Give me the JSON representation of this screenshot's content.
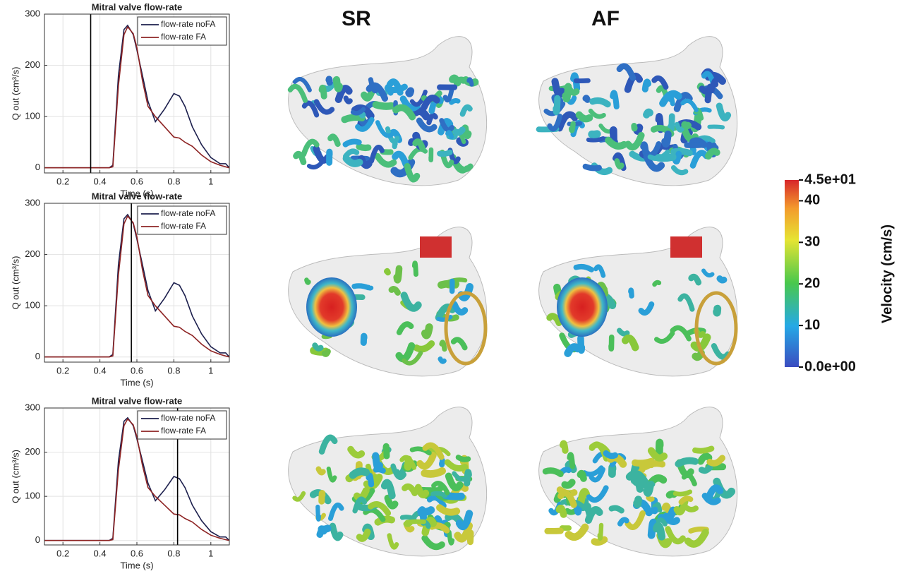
{
  "columns": [
    "SR",
    "AF"
  ],
  "colorbar": {
    "label": "Velocity (cm/s)",
    "lim": [
      0,
      45
    ],
    "ticks": [
      {
        "value": 45,
        "label": "4.5e+01"
      },
      40,
      30,
      20,
      10,
      {
        "value": 0,
        "label": "0.0e+00"
      }
    ]
  },
  "chart_data": [
    {
      "type": "line",
      "title": "Mitral valve flow-rate",
      "x_label": "Time (s)",
      "y_label": "Q out (cm³/s)",
      "x": [
        0.1,
        0.2,
        0.3,
        0.4,
        0.45,
        0.47,
        0.5,
        0.53,
        0.55,
        0.58,
        0.6,
        0.63,
        0.66,
        0.7,
        0.75,
        0.8,
        0.83,
        0.86,
        0.9,
        0.95,
        1.0,
        1.05,
        1.08,
        1.1
      ],
      "series": [
        {
          "name": "flow-rate noFA",
          "color": "#1c1f4d",
          "values": [
            0,
            0,
            0,
            0,
            0,
            5,
            180,
            270,
            278,
            260,
            230,
            180,
            130,
            90,
            115,
            145,
            140,
            120,
            80,
            45,
            20,
            8,
            8,
            0
          ]
        },
        {
          "name": "flow-rate FA",
          "color": "#8e2424",
          "values": [
            0,
            0,
            0,
            0,
            0,
            2,
            160,
            260,
            275,
            262,
            235,
            170,
            120,
            100,
            80,
            60,
            58,
            50,
            42,
            25,
            12,
            5,
            2,
            0
          ]
        }
      ],
      "marker_x": 0.35,
      "xlim": [
        0.1,
        1.1
      ],
      "xticks": [
        0.2,
        0.4,
        0.6,
        0.8,
        1
      ],
      "ylim": [
        -10,
        300
      ],
      "yticks": [
        0,
        100,
        200,
        300
      ],
      "grid": true,
      "legend": "upper right"
    },
    {
      "type": "line",
      "title": "Mitral valve flow-rate",
      "x_label": "Time (s)",
      "y_label": "Q out (cm³/s)",
      "x": [
        0.1,
        0.2,
        0.3,
        0.4,
        0.45,
        0.47,
        0.5,
        0.53,
        0.55,
        0.58,
        0.6,
        0.63,
        0.66,
        0.7,
        0.75,
        0.8,
        0.83,
        0.86,
        0.9,
        0.95,
        1.0,
        1.05,
        1.08,
        1.1
      ],
      "series": [
        {
          "name": "flow-rate noFA",
          "color": "#1c1f4d",
          "values": [
            0,
            0,
            0,
            0,
            0,
            5,
            180,
            270,
            278,
            260,
            230,
            180,
            130,
            90,
            115,
            145,
            140,
            120,
            80,
            45,
            20,
            8,
            8,
            0
          ]
        },
        {
          "name": "flow-rate FA",
          "color": "#8e2424",
          "values": [
            0,
            0,
            0,
            0,
            0,
            2,
            160,
            260,
            275,
            262,
            235,
            170,
            120,
            100,
            80,
            60,
            58,
            50,
            42,
            25,
            12,
            5,
            2,
            0
          ]
        }
      ],
      "marker_x": 0.57,
      "xlim": [
        0.1,
        1.1
      ],
      "xticks": [
        0.2,
        0.4,
        0.6,
        0.8,
        1
      ],
      "ylim": [
        -10,
        300
      ],
      "yticks": [
        0,
        100,
        200,
        300
      ],
      "grid": true,
      "legend": "upper right"
    },
    {
      "type": "line",
      "title": "Mitral valve flow-rate",
      "x_label": "Time (s)",
      "y_label": "Q out (cm³/s)",
      "x": [
        0.1,
        0.2,
        0.3,
        0.4,
        0.45,
        0.47,
        0.5,
        0.53,
        0.55,
        0.58,
        0.6,
        0.63,
        0.66,
        0.7,
        0.75,
        0.8,
        0.83,
        0.86,
        0.9,
        0.95,
        1.0,
        1.05,
        1.08,
        1.1
      ],
      "series": [
        {
          "name": "flow-rate noFA",
          "color": "#1c1f4d",
          "values": [
            0,
            0,
            0,
            0,
            0,
            5,
            180,
            270,
            278,
            260,
            230,
            180,
            130,
            90,
            115,
            145,
            140,
            120,
            80,
            45,
            20,
            8,
            8,
            0
          ]
        },
        {
          "name": "flow-rate FA",
          "color": "#8e2424",
          "values": [
            0,
            0,
            0,
            0,
            0,
            2,
            160,
            260,
            275,
            262,
            235,
            170,
            120,
            100,
            80,
            60,
            58,
            50,
            42,
            25,
            12,
            5,
            2,
            0
          ]
        }
      ],
      "marker_x": 0.82,
      "xlim": [
        0.1,
        1.1
      ],
      "xticks": [
        0.2,
        0.4,
        0.6,
        0.8,
        1
      ],
      "ylim": [
        -10,
        300
      ],
      "yticks": [
        0,
        100,
        200,
        300
      ],
      "grid": true,
      "legend": "upper right"
    }
  ]
}
